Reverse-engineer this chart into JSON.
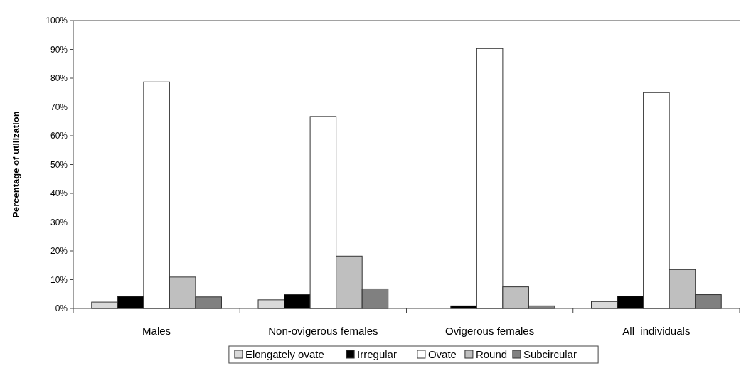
{
  "chart_data": {
    "type": "bar",
    "ylabel": "Percentage of utilization",
    "categories": [
      "Males",
      "Non-ovigerous females",
      "Ovigerous females",
      "All  individuals"
    ],
    "series": [
      {
        "name": "Elongately ovate",
        "color": "#d9d9d9",
        "values": [
          2.2,
          3.0,
          0,
          2.4
        ]
      },
      {
        "name": "Irregular",
        "color": "#000000",
        "values": [
          4.2,
          4.9,
          0.9,
          4.3
        ]
      },
      {
        "name": "Ovate",
        "color": "#ffffff",
        "values": [
          78.7,
          66.7,
          90.3,
          75.0
        ]
      },
      {
        "name": "Round",
        "color": "#bfbfbf",
        "values": [
          10.9,
          18.2,
          7.5,
          13.5
        ]
      },
      {
        "name": "Subcircular",
        "color": "#808080",
        "values": [
          4.0,
          6.8,
          0.9,
          4.8
        ]
      }
    ],
    "ylim": [
      0,
      100
    ],
    "yticks": [
      {
        "value": 0,
        "label": "0%"
      },
      {
        "value": 10,
        "label": "10%"
      },
      {
        "value": 20,
        "label": "20%"
      },
      {
        "value": 30,
        "label": "30%"
      },
      {
        "value": 40,
        "label": "40%"
      },
      {
        "value": 50,
        "label": "50%"
      },
      {
        "value": 60,
        "label": "60%"
      },
      {
        "value": 70,
        "label": "70%"
      },
      {
        "value": 80,
        "label": "80%"
      },
      {
        "value": 90,
        "label": "90%"
      },
      {
        "value": 100,
        "label": "100%"
      }
    ],
    "grid": false,
    "legend": "bottom"
  }
}
